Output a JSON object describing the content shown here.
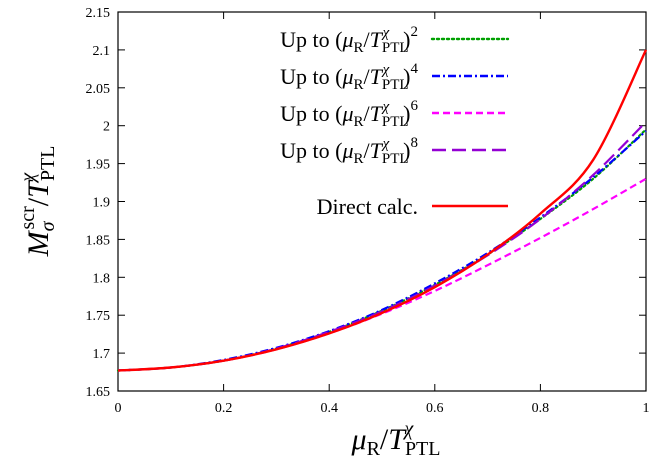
{
  "chart_data": {
    "type": "line",
    "title": "",
    "xlabel": "μR/TPTLχ",
    "ylabel": "Mσscr/TPTLχ",
    "xlim": [
      0,
      1
    ],
    "ylim": [
      1.65,
      2.15
    ],
    "x_ticks": [
      "0",
      "0.2",
      "0.4",
      "0.6",
      "0.8",
      "1"
    ],
    "y_ticks": [
      "1.65",
      "1.7",
      "1.75",
      "1.8",
      "1.85",
      "1.9",
      "1.95",
      "2",
      "2.05",
      "2.1",
      "2.15"
    ],
    "grid": false,
    "legend_position": "top-right",
    "x": [
      0,
      0.1,
      0.2,
      0.3,
      0.4,
      0.5,
      0.6,
      0.7,
      0.8,
      0.9,
      1.0
    ],
    "series": [
      {
        "name": "Up to (μR/TPTLχ)2",
        "color": "#00a000",
        "dash": "dotted",
        "values": [
          1.677,
          1.681,
          1.69,
          1.706,
          1.728,
          1.756,
          1.79,
          1.83,
          1.877,
          1.93,
          1.995
        ]
      },
      {
        "name": "Up to (μR/TPTLχ)4",
        "color": "#0000ff",
        "dash": "dash-dot",
        "values": [
          1.677,
          1.681,
          1.691,
          1.707,
          1.729,
          1.757,
          1.792,
          1.832,
          1.879,
          1.932,
          1.993
        ]
      },
      {
        "name": "Up to (μR/TPTLχ)6",
        "color": "#ff00ff",
        "dash": "dashed",
        "values": [
          1.677,
          1.681,
          1.69,
          1.705,
          1.726,
          1.752,
          1.782,
          1.816,
          1.852,
          1.89,
          1.93
        ]
      },
      {
        "name": "Up to (μR/TPTLχ)8",
        "color": "#9400d3",
        "dash": "long-dash",
        "values": [
          1.677,
          1.681,
          1.69,
          1.706,
          1.728,
          1.755,
          1.789,
          1.829,
          1.877,
          1.935,
          2.005
        ]
      },
      {
        "name": "Direct calc.",
        "color": "#ff0000",
        "dash": "solid",
        "values": [
          1.677,
          1.681,
          1.69,
          1.705,
          1.726,
          1.753,
          1.787,
          1.83,
          1.884,
          1.955,
          2.1
        ]
      }
    ],
    "legend": [
      {
        "base": "Up to (",
        "mu": "μ",
        "musub": "R",
        "slash": "/",
        "t": "T",
        "tsub": "PTL",
        "tsup": "χ",
        "close": ")",
        "power": "2"
      },
      {
        "base": "Up to (",
        "mu": "μ",
        "musub": "R",
        "slash": "/",
        "t": "T",
        "tsub": "PTL",
        "tsup": "χ",
        "close": ")",
        "power": "4"
      },
      {
        "base": "Up to (",
        "mu": "μ",
        "musub": "R",
        "slash": "/",
        "t": "T",
        "tsub": "PTL",
        "tsup": "χ",
        "close": ")",
        "power": "6"
      },
      {
        "base": "Up to (",
        "mu": "μ",
        "musub": "R",
        "slash": "/",
        "t": "T",
        "tsub": "PTL",
        "tsup": "χ",
        "close": ")",
        "power": "8"
      },
      {
        "base": "Direct calc."
      }
    ],
    "xlabel_parts": {
      "mu": "μ",
      "musub": "R",
      "slash": "/",
      "t": "T",
      "tsub": "PTL",
      "tsup": "χ"
    },
    "ylabel_parts": {
      "m": "M",
      "msub": "σ",
      "msup": "scr",
      "slash": "/",
      "t": "T",
      "tsub": "PTL",
      "tsup": "χ"
    }
  }
}
